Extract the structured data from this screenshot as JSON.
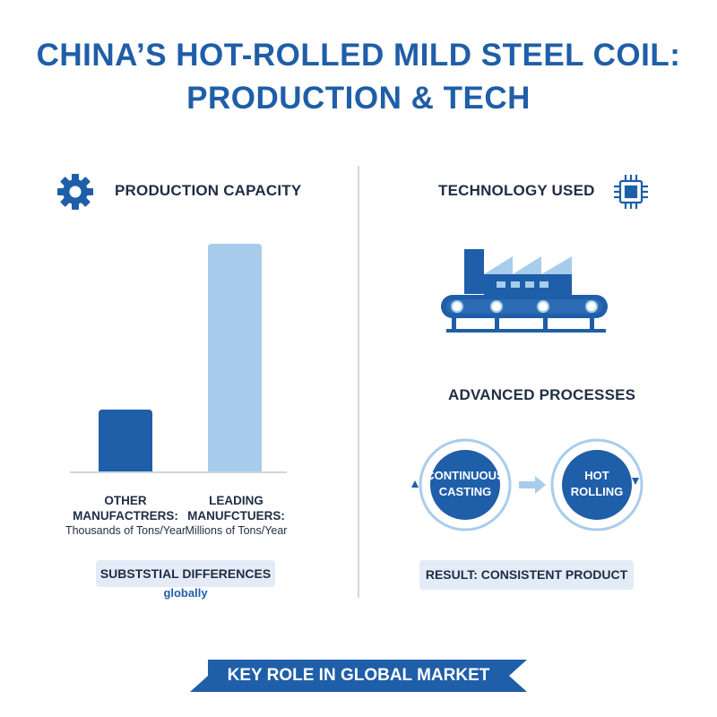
{
  "title": {
    "line1": "CHINA’S HOT-ROLLED MILD STEEL COIL:",
    "line2": "PRODUCTION & TECH"
  },
  "left_panel": {
    "heading": "PRODUCTION CAPACITY",
    "icon": "gear-icon",
    "bars": [
      {
        "label": "OTHER\nMANUFACTRERS:",
        "label_line1": "OTHER",
        "label_line2": "MANUFACTRERS:",
        "unit": "Thousands of Tons/Year",
        "relative_value": 0.27,
        "color": "#1f5ea8"
      },
      {
        "label_line1": "LEADING",
        "label_line2": "MANUFCTUERS:",
        "unit": "Millions of Tons/Year",
        "relative_value": 1.0,
        "color": "#a8cdec"
      }
    ],
    "note": "SUBSTSTIAL DIFFERENCES",
    "note_sub": "globally"
  },
  "right_panel": {
    "heading": "TECHNOLOGY USED",
    "icon": "chip-icon",
    "factory_icon": "factory-conveyor-icon",
    "subheading": "ADVANCED PROCESSES",
    "process_1": {
      "line1": "CONTINUOUS",
      "line2": "CASTING"
    },
    "process_2": {
      "line1": "HOT",
      "line2": "ROLLING"
    },
    "result": "RESULT: CONSISTENT PRODUCT"
  },
  "banner": "KEY ROLE IN GLOBAL MARKET",
  "colors": {
    "primary": "#1f5ea8",
    "light_blue": "#a8cdec",
    "text_dark": "#1f2d44",
    "pill_bg": "#e3ebf6"
  }
}
